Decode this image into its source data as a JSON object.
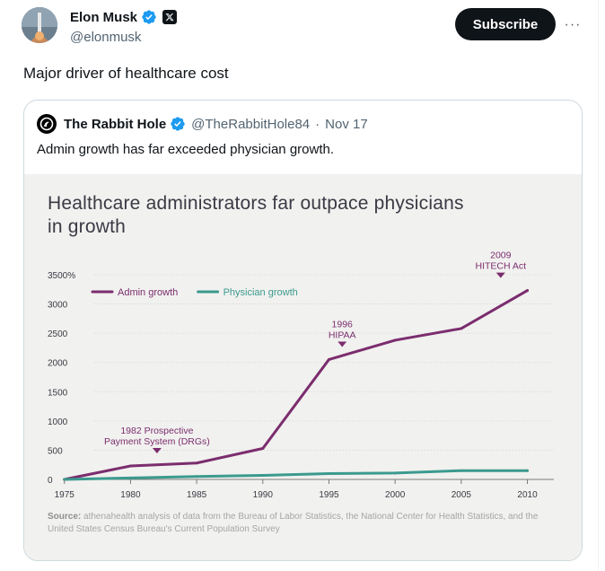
{
  "post": {
    "author_name": "Elon Musk",
    "author_handle": "@elonmusk",
    "subscribe_label": "Subscribe",
    "more_label": "···",
    "text": "Major driver of healthcare cost"
  },
  "quote": {
    "author_name": "The Rabbit Hole",
    "author_handle": "@TheRabbitHole84",
    "separator": "·",
    "date": "Nov 17",
    "text": "Admin growth has far exceeded physician growth."
  },
  "figure": {
    "title": "Healthcare administrators far outpace physicians in growth",
    "source_label": "Source:",
    "source_text": " athenahealth analysis of data from the Bureau of Labor Statistics, the National Center for Health Statistics, and the United States Census Bureau's Current Population Survey"
  },
  "colors": {
    "admin": "#7b2d6e",
    "physician": "#3b9a8e",
    "verified": "#1d9bf0"
  },
  "chart_data": {
    "type": "line",
    "title": "Healthcare administrators far outpace physicians in growth",
    "xlabel": "",
    "ylabel": "",
    "x_ticks": [
      "1975",
      "1980",
      "1985",
      "1990",
      "1995",
      "2000",
      "2005",
      "2010"
    ],
    "y_ticks": [
      "0",
      "500",
      "1000",
      "1500",
      "2000",
      "2500",
      "3000",
      "3500%"
    ],
    "xlim": [
      1974,
      2012
    ],
    "ylim": [
      0,
      3500
    ],
    "legend_position": "top-left",
    "series": [
      {
        "name": "Admin growth",
        "color": "#7b2d6e",
        "x": [
          1975,
          1980,
          1985,
          1990,
          1995,
          2000,
          2005,
          2010
        ],
        "y": [
          0,
          230,
          280,
          530,
          2050,
          2380,
          2580,
          3230
        ]
      },
      {
        "name": "Physician growth",
        "color": "#3b9a8e",
        "x": [
          1975,
          1980,
          1985,
          1990,
          1995,
          2000,
          2005,
          2010
        ],
        "y": [
          0,
          25,
          50,
          70,
          100,
          110,
          150,
          150
        ]
      }
    ],
    "annotations": [
      {
        "lines": [
          "1982 Prospective",
          "Payment System (DRGs)"
        ],
        "x": 1982,
        "y": 230
      },
      {
        "lines": [
          "1996",
          "HIPAA"
        ],
        "x": 1996,
        "y": 2050
      },
      {
        "lines": [
          "2009",
          "HITECH Act"
        ],
        "x": 2009,
        "y": 3230
      }
    ]
  }
}
